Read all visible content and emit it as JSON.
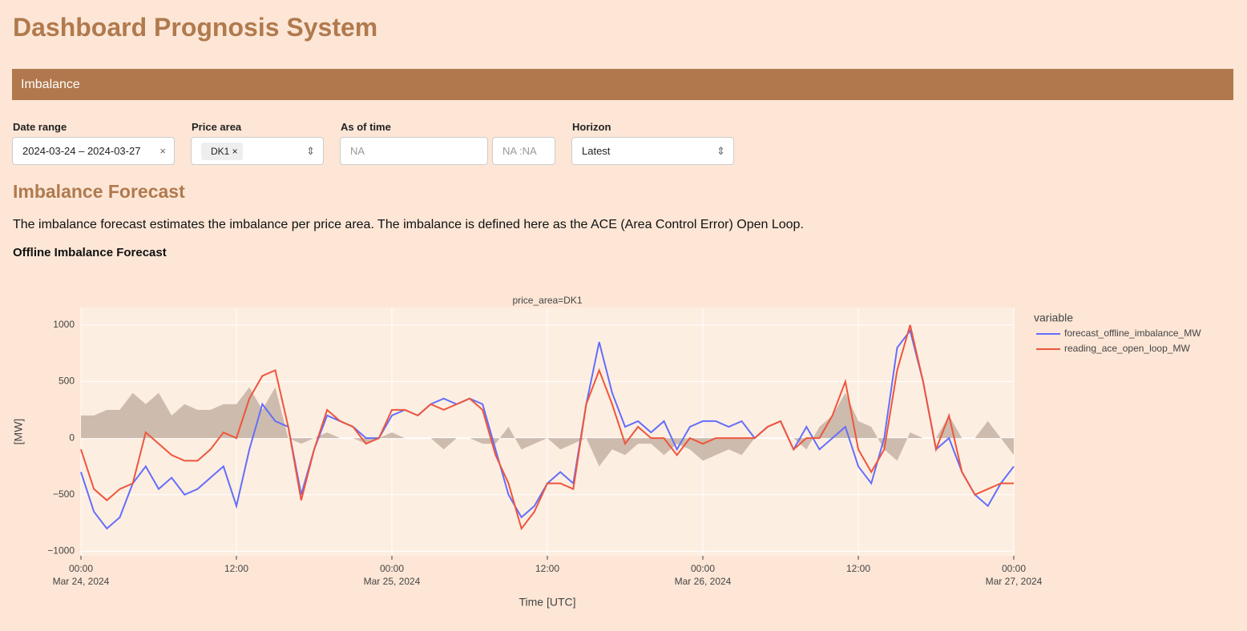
{
  "header": {
    "title": "Dashboard Prognosis System"
  },
  "tab": {
    "label": "Imbalance"
  },
  "filters": [
    {
      "label": "Date range",
      "value": "2024-03-24 – 2024-03-27"
    },
    {
      "label": "Price area",
      "value": "DK1"
    },
    {
      "label": "As of time",
      "value": "NA",
      "time": "NA :NA"
    },
    {
      "label": "Horizon",
      "value": "Latest"
    }
  ],
  "section": {
    "title": "Imbalance Forecast",
    "description": "The imbalance forecast estimates the imbalance per price area. The imbalance is defined here as the ACE (Area Control Error) Open Loop.",
    "subtitle": "Offline Imbalance Forecast"
  },
  "chart_data": {
    "type": "line",
    "title": "price_area=DK1",
    "xlabel": "Time [UTC]",
    "ylabel": "[MW]",
    "legend_title": "variable",
    "legend": "right",
    "grid": true,
    "x": [
      "2024-03-24T00:00",
      "2024-03-24T01:00",
      "2024-03-24T02:00",
      "2024-03-24T03:00",
      "2024-03-24T04:00",
      "2024-03-24T05:00",
      "2024-03-24T06:00",
      "2024-03-24T07:00",
      "2024-03-24T08:00",
      "2024-03-24T09:00",
      "2024-03-24T10:00",
      "2024-03-24T11:00",
      "2024-03-24T12:00",
      "2024-03-24T13:00",
      "2024-03-24T14:00",
      "2024-03-24T15:00",
      "2024-03-24T16:00",
      "2024-03-24T17:00",
      "2024-03-24T18:00",
      "2024-03-24T19:00",
      "2024-03-24T20:00",
      "2024-03-24T21:00",
      "2024-03-24T22:00",
      "2024-03-24T23:00",
      "2024-03-25T00:00",
      "2024-03-25T01:00",
      "2024-03-25T02:00",
      "2024-03-25T03:00",
      "2024-03-25T04:00",
      "2024-03-25T05:00",
      "2024-03-25T06:00",
      "2024-03-25T07:00",
      "2024-03-25T08:00",
      "2024-03-25T09:00",
      "2024-03-25T10:00",
      "2024-03-25T11:00",
      "2024-03-25T12:00",
      "2024-03-25T13:00",
      "2024-03-25T14:00",
      "2024-03-25T15:00",
      "2024-03-25T16:00",
      "2024-03-25T17:00",
      "2024-03-25T18:00",
      "2024-03-25T19:00",
      "2024-03-25T20:00",
      "2024-03-25T21:00",
      "2024-03-25T22:00",
      "2024-03-25T23:00",
      "2024-03-26T00:00",
      "2024-03-26T01:00",
      "2024-03-26T02:00",
      "2024-03-26T03:00",
      "2024-03-26T04:00",
      "2024-03-26T05:00",
      "2024-03-26T06:00",
      "2024-03-26T07:00",
      "2024-03-26T08:00",
      "2024-03-26T09:00",
      "2024-03-26T10:00",
      "2024-03-26T11:00",
      "2024-03-26T12:00",
      "2024-03-26T13:00",
      "2024-03-26T14:00",
      "2024-03-26T15:00",
      "2024-03-26T16:00",
      "2024-03-26T17:00",
      "2024-03-26T18:00",
      "2024-03-26T19:00",
      "2024-03-26T20:00",
      "2024-03-26T21:00",
      "2024-03-26T22:00",
      "2024-03-26T23:00",
      "2024-03-27T00:00"
    ],
    "series": [
      {
        "name": "forecast_offline_imbalance_MW",
        "color": "#636efa",
        "values": [
          -300,
          -650,
          -800,
          -700,
          -400,
          -250,
          -450,
          -350,
          -500,
          -450,
          -350,
          -250,
          -600,
          -100,
          300,
          150,
          100,
          -500,
          -100,
          200,
          150,
          100,
          0,
          0,
          200,
          250,
          200,
          300,
          350,
          300,
          350,
          300,
          -100,
          -500,
          -700,
          -600,
          -400,
          -300,
          -400,
          300,
          850,
          400,
          100,
          150,
          50,
          150,
          -100,
          100,
          150,
          150,
          100,
          150,
          0,
          100,
          150,
          -100,
          100,
          -100,
          0,
          100,
          -250,
          -400,
          0,
          800,
          950,
          500,
          -100,
          0,
          -300,
          -500,
          -600,
          -400,
          -250
        ]
      },
      {
        "name": "reading_ace_open_loop_MW",
        "color": "#ef553b",
        "values": [
          -100,
          -450,
          -550,
          -450,
          -400,
          50,
          -50,
          -150,
          -200,
          -200,
          -100,
          50,
          0,
          350,
          550,
          600,
          100,
          -550,
          -100,
          250,
          150,
          100,
          -50,
          0,
          250,
          250,
          200,
          300,
          250,
          300,
          350,
          250,
          -150,
          -400,
          -800,
          -650,
          -400,
          -400,
          -450,
          300,
          600,
          300,
          -50,
          100,
          0,
          0,
          -150,
          0,
          -50,
          0,
          0,
          0,
          0,
          100,
          150,
          -100,
          0,
          0,
          200,
          500,
          -100,
          -300,
          -100,
          600,
          1000,
          500,
          -100,
          200,
          -300,
          -500,
          -450,
          -400,
          -400
        ]
      },
      {
        "type": "area",
        "color": "#c4b2a3",
        "values": [
          200,
          200,
          250,
          250,
          400,
          300,
          400,
          200,
          300,
          250,
          250,
          300,
          300,
          450,
          250,
          450,
          0,
          -50,
          0,
          50,
          0,
          0,
          -50,
          0,
          50,
          0,
          0,
          0,
          -100,
          0,
          0,
          -50,
          -50,
          100,
          -100,
          -50,
          0,
          -100,
          -50,
          0,
          -250,
          -100,
          -150,
          -50,
          -50,
          -150,
          -50,
          -100,
          -200,
          -150,
          -100,
          -150,
          0,
          0,
          0,
          0,
          -100,
          100,
          200,
          400,
          150,
          100,
          -100,
          -200,
          50,
          0,
          0,
          200,
          0,
          0,
          150,
          0,
          -150
        ]
      }
    ],
    "xlim": [
      "2024-03-24T00:00",
      "2024-03-27T00:00"
    ],
    "xticks": [
      {
        "value": "2024-03-24T00:00",
        "label": "00:00",
        "date": "Mar 24, 2024"
      },
      {
        "value": "2024-03-24T12:00",
        "label": "12:00"
      },
      {
        "value": "2024-03-25T00:00",
        "label": "00:00",
        "date": "Mar 25, 2024"
      },
      {
        "value": "2024-03-25T12:00",
        "label": "12:00"
      },
      {
        "value": "2024-03-26T00:00",
        "label": "00:00",
        "date": "Mar 26, 2024"
      },
      {
        "value": "2024-03-26T12:00",
        "label": "12:00"
      },
      {
        "value": "2024-03-27T00:00",
        "label": "00:00",
        "date": "Mar 27, 2024"
      }
    ],
    "ylim": [
      -1040,
      1155
    ],
    "yticks": [
      {
        "value": -1000,
        "label": "−1000"
      },
      {
        "value": -500,
        "label": "−500"
      },
      0,
      500,
      1000
    ]
  }
}
